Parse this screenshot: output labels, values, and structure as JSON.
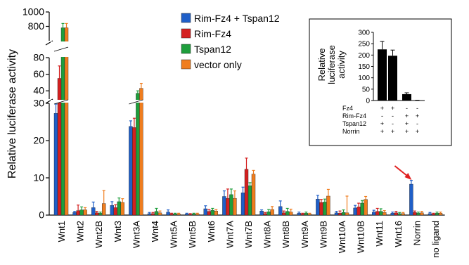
{
  "chart_data": [
    {
      "type": "bar",
      "ylabel": "Relative luciferase activity",
      "xlabel": "",
      "y_axis_segments": [
        {
          "range": [
            0,
            30
          ],
          "ticks": [
            0,
            10,
            20,
            30
          ]
        },
        {
          "range": [
            30,
            80
          ],
          "ticks": [
            40,
            60,
            80
          ]
        },
        {
          "range": [
            600,
            1000
          ],
          "ticks": [
            800,
            1000
          ]
        }
      ],
      "categories": [
        "Wnt1",
        "Wnt2",
        "Wnt2B",
        "Wnt3",
        "Wnt3A",
        "Wnt4",
        "Wnt5A",
        "Wnt5B",
        "Wnt6",
        "Wnt7A",
        "Wnt7B",
        "Wnt8A",
        "Wnt8B",
        "Wnt9A",
        "Wnt9B",
        "Wnt10A",
        "Wnt10B",
        "Wnt11",
        "Wnt16",
        "Norrin",
        "no ligand"
      ],
      "series": [
        {
          "name": "Rim-Fz4 + Tspan12",
          "color": "#1f5fc8",
          "values": [
            27.3,
            0.7,
            2.0,
            2.6,
            23.8,
            0.4,
            0.8,
            0.3,
            1.7,
            5.0,
            6.0,
            1.1,
            2.3,
            0.5,
            4.3,
            0.6,
            1.9,
            0.8,
            0.5,
            8.3,
            0.4
          ],
          "errors": [
            2.5,
            0.3,
            1.5,
            1.0,
            1.5,
            0.3,
            0.6,
            0.2,
            0.8,
            1.5,
            1.5,
            0.3,
            1.5,
            0.3,
            1.0,
            0.4,
            0.7,
            0.5,
            0.3,
            1.0,
            0.3
          ]
        },
        {
          "name": "Rim-Fz4",
          "color": "#d42020",
          "values": [
            55,
            1.2,
            0.6,
            2.0,
            23.5,
            0.4,
            0.3,
            0.2,
            1.0,
            4.5,
            12.3,
            0.4,
            0.6,
            0.3,
            3.4,
            0.5,
            2.2,
            1.0,
            0.6,
            0.7,
            0.3
          ],
          "errors": [
            15,
            1.5,
            0.4,
            0.8,
            2.5,
            0.3,
            0.2,
            0.2,
            0.5,
            2.5,
            3.0,
            0.3,
            0.5,
            0.2,
            0.8,
            0.6,
            1.0,
            0.8,
            0.4,
            0.4,
            0.2
          ]
        },
        {
          "name": "Tspan12",
          "color": "#1e9e3c",
          "values": [
            780,
            1.4,
            0.5,
            3.6,
            37,
            1.0,
            0.3,
            0.3,
            1.3,
            5.5,
            7.9,
            0.9,
            1.0,
            0.5,
            3.5,
            0.7,
            3.2,
            1.0,
            0.4,
            0.5,
            0.5
          ],
          "errors": [
            60,
            0.8,
            0.3,
            1.0,
            3.0,
            0.8,
            0.2,
            0.2,
            0.5,
            1.5,
            0.8,
            0.6,
            0.8,
            0.3,
            0.8,
            0.7,
            0.7,
            0.7,
            0.3,
            0.3,
            0.3
          ]
        },
        {
          "name": "vector only",
          "color": "#f07d1e",
          "values": [
            780,
            1.4,
            3.1,
            3.4,
            43,
            0.6,
            0.3,
            0.3,
            1.1,
            4.5,
            11.0,
            1.5,
            0.8,
            0.3,
            5.1,
            0.6,
            4.2,
            0.7,
            0.4,
            0.6,
            0.5
          ],
          "errors": [
            60,
            0.6,
            3.5,
            1.0,
            6.0,
            0.5,
            0.2,
            0.2,
            0.4,
            2.0,
            1.0,
            0.8,
            0.8,
            0.2,
            1.8,
            4.5,
            0.8,
            0.5,
            0.3,
            0.4,
            0.3
          ]
        }
      ],
      "legend_position": "top-center",
      "annotations": [
        {
          "type": "arrow",
          "target": "Norrin",
          "color": "#e02020"
        }
      ]
    },
    {
      "type": "bar",
      "ylabel": "Relative luciferase activity",
      "ylim": [
        0,
        300
      ],
      "yticks": [
        0,
        50,
        100,
        150,
        200,
        250,
        300
      ],
      "values": [
        225,
        197,
        28,
        1
      ],
      "errors": [
        35,
        25,
        6,
        0.5
      ],
      "color": "#000000",
      "condition_table": {
        "rows": [
          {
            "label": "Fz4",
            "cells": [
              "+",
              "+",
              "-",
              "-"
            ]
          },
          {
            "label": "Rim-Fz4",
            "cells": [
              "-",
              "-",
              "+",
              "+"
            ]
          },
          {
            "label": "Tspan12",
            "cells": [
              "+",
              "-",
              "+",
              "-"
            ]
          },
          {
            "label": "Norrin",
            "cells": [
              "+",
              "+",
              "+",
              "+"
            ]
          }
        ]
      },
      "legend_position": "inset-top-right"
    }
  ]
}
